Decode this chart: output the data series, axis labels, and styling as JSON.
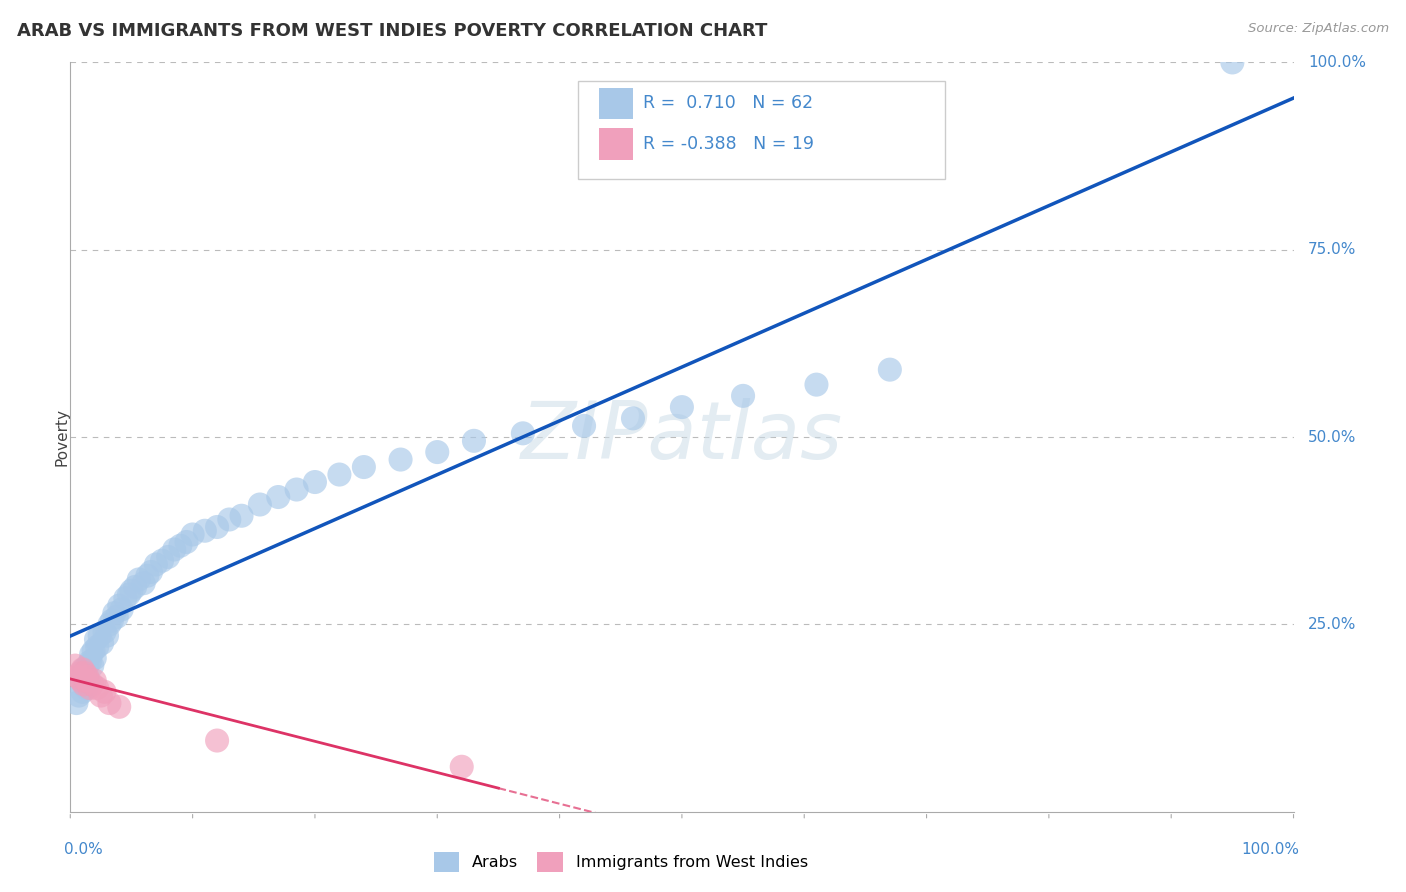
{
  "title": "ARAB VS IMMIGRANTS FROM WEST INDIES POVERTY CORRELATION CHART",
  "source": "Source: ZipAtlas.com",
  "ylabel": "Poverty",
  "watermark_text": "ZIPatlas",
  "arab_color": "#a8c8e8",
  "arab_line_color": "#1155bb",
  "pink_color": "#f0a0bc",
  "pink_line_color": "#dd3366",
  "label_color": "#4488cc",
  "background_color": "#ffffff",
  "grid_color": "#bbbbbb",
  "arab_R": 0.71,
  "arab_N": 62,
  "pink_R": -0.388,
  "pink_N": 19,
  "arab_scatter_x": [
    0.005,
    0.007,
    0.009,
    0.01,
    0.011,
    0.012,
    0.013,
    0.014,
    0.015,
    0.016,
    0.017,
    0.018,
    0.019,
    0.02,
    0.021,
    0.022,
    0.024,
    0.026,
    0.028,
    0.03,
    0.032,
    0.034,
    0.036,
    0.038,
    0.04,
    0.042,
    0.045,
    0.048,
    0.05,
    0.053,
    0.056,
    0.06,
    0.063,
    0.066,
    0.07,
    0.075,
    0.08,
    0.085,
    0.09,
    0.095,
    0.1,
    0.11,
    0.12,
    0.13,
    0.14,
    0.155,
    0.17,
    0.185,
    0.2,
    0.22,
    0.24,
    0.27,
    0.3,
    0.33,
    0.37,
    0.42,
    0.46,
    0.5,
    0.55,
    0.61,
    0.67,
    0.95
  ],
  "arab_scatter_y": [
    0.145,
    0.155,
    0.175,
    0.16,
    0.19,
    0.18,
    0.165,
    0.195,
    0.175,
    0.2,
    0.21,
    0.195,
    0.215,
    0.205,
    0.23,
    0.22,
    0.235,
    0.225,
    0.24,
    0.235,
    0.25,
    0.255,
    0.265,
    0.26,
    0.275,
    0.27,
    0.285,
    0.29,
    0.295,
    0.3,
    0.31,
    0.305,
    0.315,
    0.32,
    0.33,
    0.335,
    0.34,
    0.35,
    0.355,
    0.36,
    0.37,
    0.375,
    0.38,
    0.39,
    0.395,
    0.41,
    0.42,
    0.43,
    0.44,
    0.45,
    0.46,
    0.47,
    0.48,
    0.495,
    0.505,
    0.515,
    0.525,
    0.54,
    0.555,
    0.57,
    0.59,
    1.0
  ],
  "pink_scatter_x": [
    0.004,
    0.006,
    0.008,
    0.009,
    0.01,
    0.011,
    0.012,
    0.013,
    0.014,
    0.016,
    0.018,
    0.02,
    0.022,
    0.025,
    0.028,
    0.032,
    0.04,
    0.12,
    0.32
  ],
  "pink_scatter_y": [
    0.195,
    0.18,
    0.185,
    0.175,
    0.19,
    0.17,
    0.185,
    0.175,
    0.18,
    0.165,
    0.17,
    0.175,
    0.165,
    0.155,
    0.16,
    0.145,
    0.14,
    0.095,
    0.06
  ],
  "xlim": [
    0.0,
    1.0
  ],
  "ylim": [
    0.0,
    1.0
  ],
  "right_y_ticks": [
    0.25,
    0.5,
    0.75,
    1.0
  ],
  "right_y_labels": [
    "25.0%",
    "50.0%",
    "75.0%",
    "100.0%"
  ]
}
